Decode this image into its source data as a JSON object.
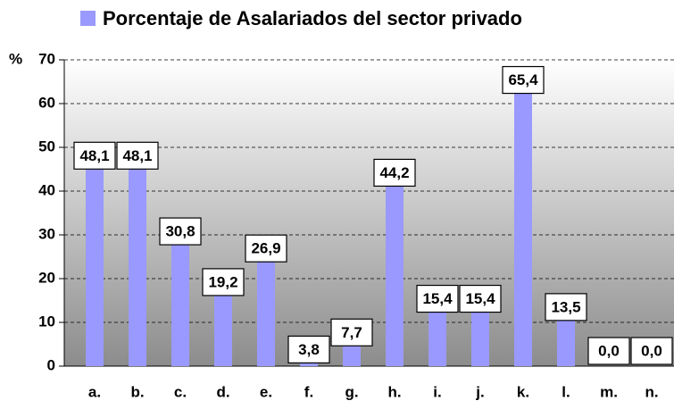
{
  "chart_data": {
    "type": "bar",
    "y_axis_label": "%",
    "categories": [
      "a.",
      "b.",
      "c.",
      "d.",
      "e.",
      "f.",
      "g.",
      "h.",
      "i.",
      "j.",
      "k.",
      "l.",
      "m.",
      "n."
    ],
    "series": [
      {
        "name": "Porcentaje de Asalariados del sector privado",
        "color": "#9999ff",
        "values": [
          48.1,
          48.1,
          30.8,
          19.2,
          26.9,
          3.8,
          7.7,
          44.2,
          15.4,
          15.4,
          65.4,
          13.5,
          0.0,
          0.0
        ],
        "value_labels": [
          "48,1",
          "48,1",
          "30,8",
          "19,2",
          "26,9",
          "3,8",
          "7,7",
          "44,2",
          "15,4",
          "15,4",
          "65,4",
          "13,5",
          "0,0",
          "0,0"
        ]
      }
    ],
    "ylim": [
      0,
      70
    ],
    "yticks": [
      0,
      10,
      20,
      30,
      40,
      50,
      60,
      70
    ],
    "grid": true,
    "legend": "top"
  }
}
